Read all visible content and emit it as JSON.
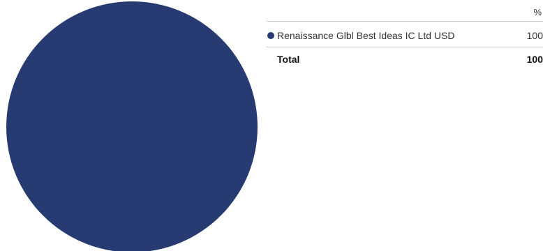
{
  "chart_data": {
    "type": "pie",
    "title": "",
    "value_header": "%",
    "series": [
      {
        "name": "Renaissance Glbl Best Ideas IC Ltd USD",
        "value": 100,
        "color": "#283a72"
      }
    ],
    "total": {
      "label": "Total",
      "value": "100"
    },
    "legend_placement": "right"
  }
}
